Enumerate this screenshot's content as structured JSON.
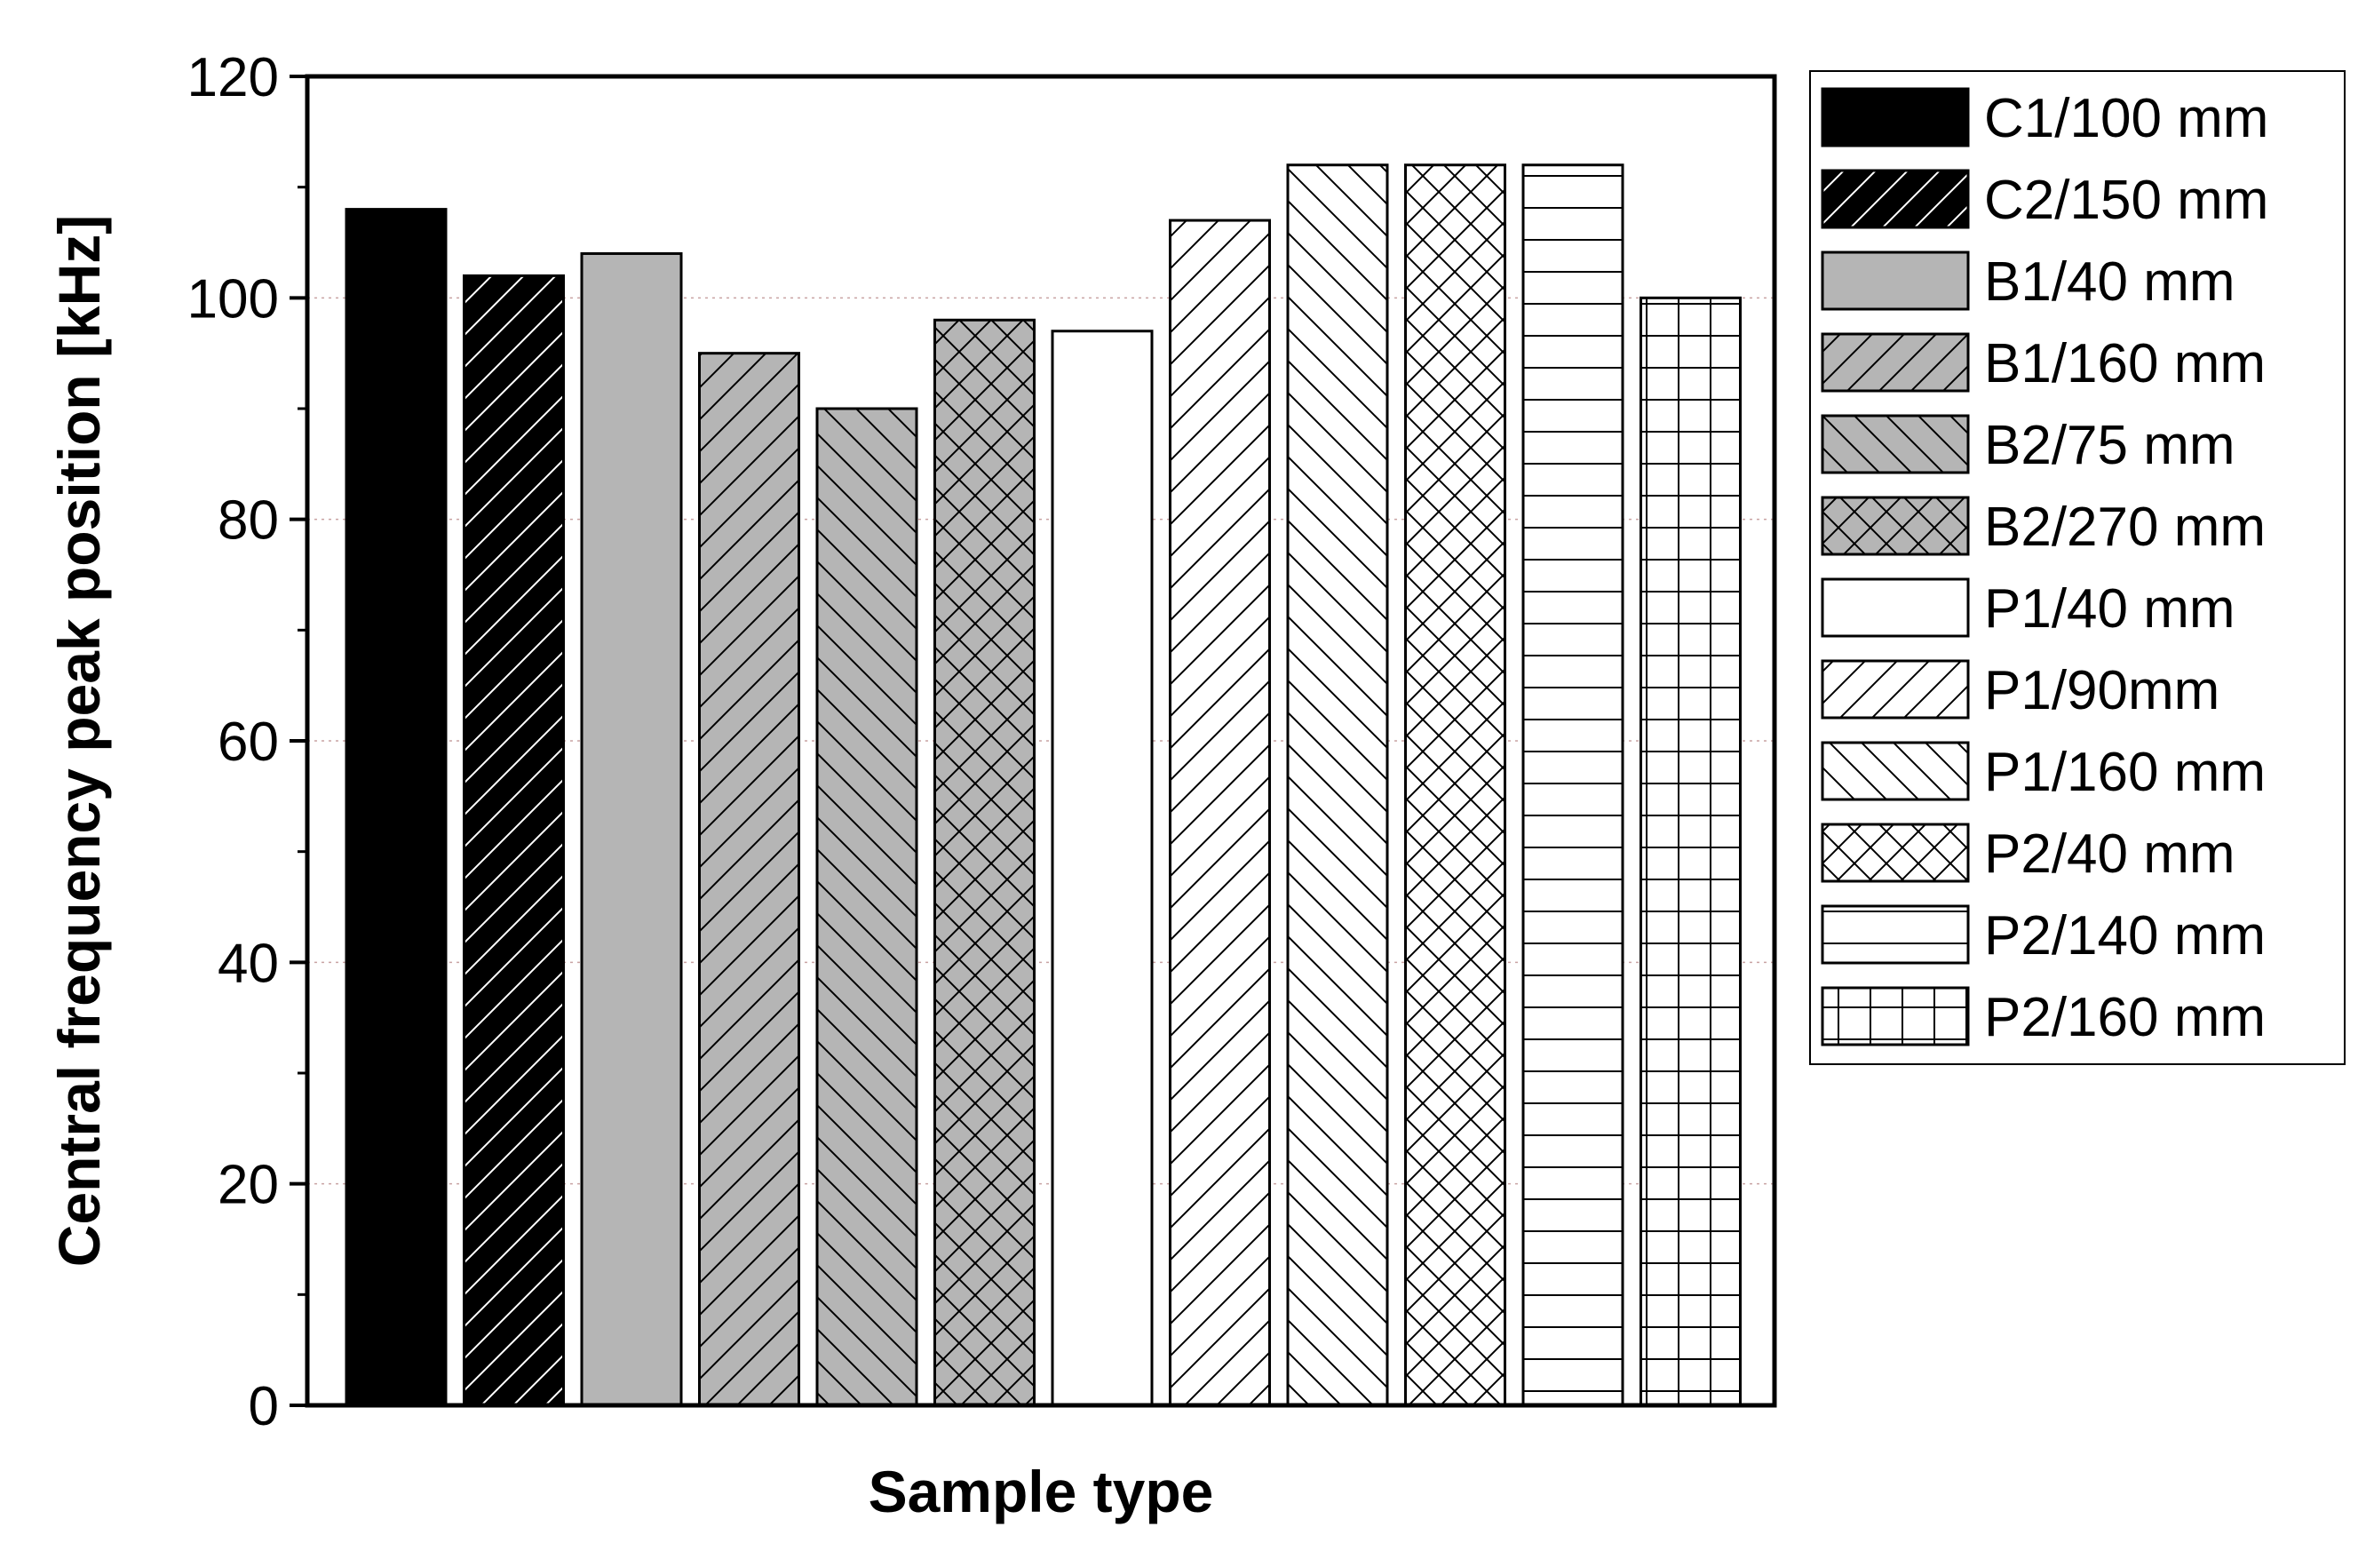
{
  "chart_data": {
    "type": "bar",
    "title": "",
    "xlabel": "Sample type",
    "ylabel": "Central frequency peak position [kHz]",
    "ylim": [
      0,
      120
    ],
    "yticks": [
      0,
      20,
      40,
      60,
      80,
      100,
      120
    ],
    "grid": "horizontal dotted",
    "legend_position": "right-outside-top",
    "categories": [
      "C1/100 mm",
      "C2/150 mm",
      "B1/40 mm",
      "B1/160 mm",
      "B2/75 mm",
      "B2/270 mm",
      "P1/40 mm",
      "P1/90mm",
      "P1/160 mm",
      "P2/40 mm",
      "P2/140 mm",
      "P2/160 mm"
    ],
    "values": [
      108,
      102,
      104,
      95,
      90,
      98,
      97,
      107,
      112,
      112,
      112,
      100
    ],
    "fills": [
      "#000000",
      "#000000",
      "#b5b5b5",
      "#b5b5b5",
      "#b5b5b5",
      "#b5b5b5",
      "#ffffff",
      "#ffffff",
      "#ffffff",
      "#ffffff",
      "#ffffff",
      "#ffffff"
    ],
    "patterns": [
      "solid",
      "forward-hatch",
      "solid",
      "forward-hatch",
      "back-hatch",
      "cross-hatch",
      "solid",
      "forward-hatch",
      "back-hatch",
      "cross-hatch",
      "horizontal-lines",
      "grid"
    ]
  }
}
